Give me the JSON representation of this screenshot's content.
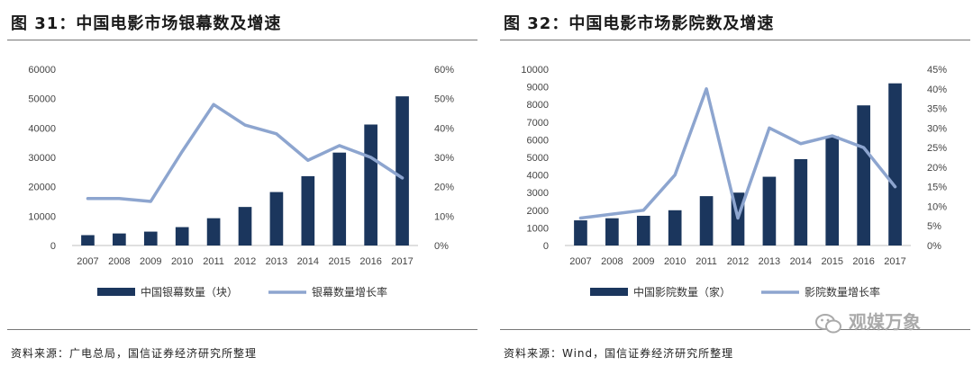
{
  "watermark": {
    "text": "观媒万象",
    "icon": "wechat-icon"
  },
  "colors": {
    "bar": "#1b365d",
    "line": "#8da5cf"
  },
  "chart_data": [
    {
      "type": "bar",
      "title": "图 31：中国电影市场银幕数及增速",
      "source": "资料来源：广电总局，国信证券经济研究所整理",
      "categories": [
        "2007",
        "2008",
        "2009",
        "2010",
        "2011",
        "2012",
        "2013",
        "2014",
        "2015",
        "2016",
        "2017"
      ],
      "series": [
        {
          "name": "中国银幕数量（块）",
          "type": "bar",
          "axis": "left",
          "values": [
            3527,
            4097,
            4723,
            6256,
            9286,
            13118,
            18195,
            23600,
            31627,
            41179,
            50776
          ]
        },
        {
          "name": "银幕数量增长率",
          "type": "line",
          "axis": "right",
          "values": [
            0.16,
            0.16,
            0.15,
            0.32,
            0.48,
            0.41,
            0.38,
            0.29,
            0.34,
            0.3,
            0.23
          ]
        }
      ],
      "y_left": {
        "min": 0,
        "max": 60000,
        "step": 10000,
        "ticks": [
          "0",
          "10000",
          "20000",
          "30000",
          "40000",
          "50000",
          "60000"
        ]
      },
      "y_right": {
        "min": 0,
        "max": 0.6,
        "step": 0.1,
        "ticks": [
          "0%",
          "10%",
          "20%",
          "30%",
          "40%",
          "50%",
          "60%"
        ]
      }
    },
    {
      "type": "bar",
      "title": "图 32：中国电影市场影院数及增速",
      "source": "资料来源：Wind，国信证券经济研究所整理",
      "categories": [
        "2007",
        "2008",
        "2009",
        "2010",
        "2011",
        "2012",
        "2013",
        "2014",
        "2015",
        "2016",
        "2017"
      ],
      "series": [
        {
          "name": "中国影院数量（家）",
          "type": "bar",
          "axis": "left",
          "values": [
            1427,
            1545,
            1687,
            2000,
            2800,
            3000,
            3900,
            4900,
            6200,
            7950,
            9200
          ]
        },
        {
          "name": "影院数量增长率",
          "type": "line",
          "axis": "right",
          "values": [
            0.07,
            0.08,
            0.09,
            0.18,
            0.4,
            0.07,
            0.3,
            0.26,
            0.28,
            0.25,
            0.15
          ]
        }
      ],
      "y_left": {
        "min": 0,
        "max": 10000,
        "step": 1000,
        "ticks": [
          "0",
          "1000",
          "2000",
          "3000",
          "4000",
          "5000",
          "6000",
          "7000",
          "8000",
          "9000",
          "10000"
        ]
      },
      "y_right": {
        "min": 0,
        "max": 0.45,
        "step": 0.05,
        "ticks": [
          "0%",
          "5%",
          "10%",
          "15%",
          "20%",
          "25%",
          "30%",
          "35%",
          "40%",
          "45%"
        ]
      }
    }
  ]
}
